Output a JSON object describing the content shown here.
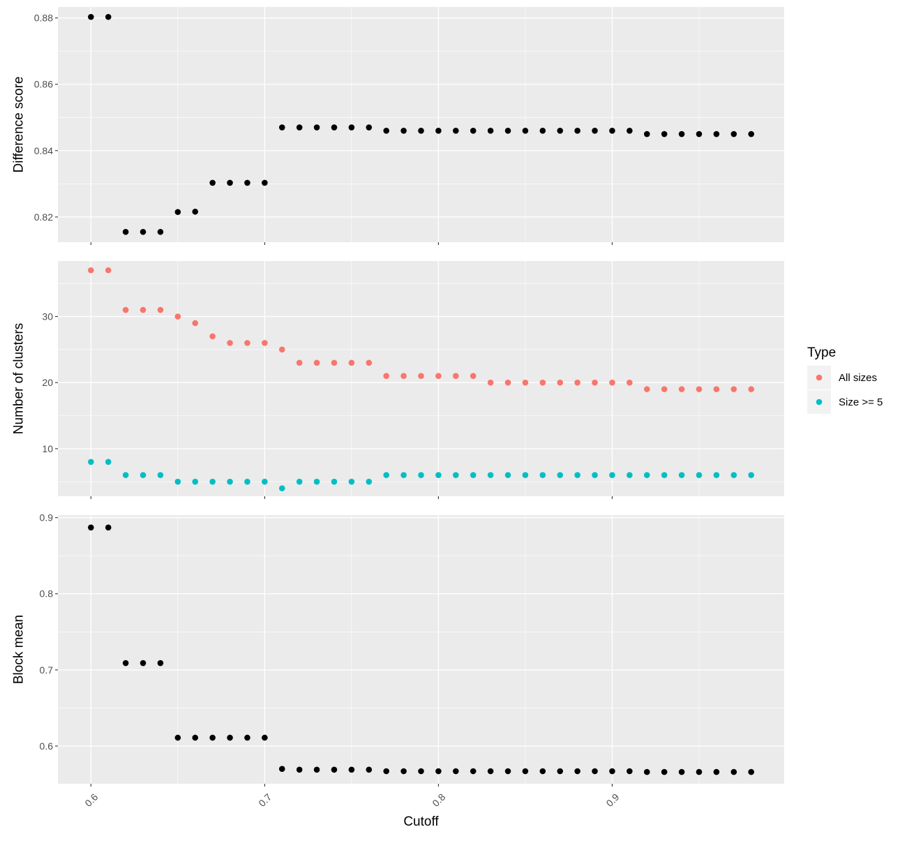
{
  "chart_data": {
    "type": "scatter",
    "xlabel": "Cutoff",
    "x": [
      0.6,
      0.61,
      0.62,
      0.63,
      0.64,
      0.65,
      0.66,
      0.67,
      0.68,
      0.69,
      0.7,
      0.71,
      0.72,
      0.73,
      0.74,
      0.75,
      0.76,
      0.77,
      0.78,
      0.79,
      0.8,
      0.81,
      0.82,
      0.83,
      0.84,
      0.85,
      0.86,
      0.87,
      0.88,
      0.89,
      0.9,
      0.91,
      0.92,
      0.93,
      0.94,
      0.95,
      0.96,
      0.97,
      0.98
    ],
    "xlim": [
      0.581,
      0.999
    ],
    "xticks": [
      0.6,
      0.7,
      0.8,
      0.9
    ],
    "xtick_labels": [
      "0.6",
      "0.7",
      "0.8",
      "0.9"
    ],
    "grid": true,
    "panels": [
      {
        "ylabel": "Difference score",
        "ylim": [
          0.8124,
          0.8833
        ],
        "yticks": [
          0.82,
          0.84,
          0.86,
          0.88
        ],
        "ytick_labels": [
          "0.82",
          "0.84",
          "0.86",
          "0.88"
        ],
        "series": [
          {
            "color": "#000000",
            "values": [
              0.8803,
              0.8803,
              0.8155,
              0.8155,
              0.8155,
              0.8215,
              0.8216,
              0.8303,
              0.8303,
              0.8303,
              0.8303,
              0.847,
              0.847,
              0.847,
              0.847,
              0.847,
              0.847,
              0.846,
              0.846,
              0.846,
              0.846,
              0.846,
              0.846,
              0.846,
              0.846,
              0.846,
              0.846,
              0.846,
              0.846,
              0.846,
              0.846,
              0.846,
              0.845,
              0.845,
              0.845,
              0.845,
              0.845,
              0.845,
              0.845
            ]
          }
        ]
      },
      {
        "ylabel": "Number of clusters",
        "ylim": [
          2.8,
          38.4
        ],
        "yticks": [
          10,
          20,
          30
        ],
        "ytick_labels": [
          "10",
          "20",
          "30"
        ],
        "series": [
          {
            "name": "All sizes",
            "color": "#F8766D",
            "values": [
              37,
              37,
              31,
              31,
              31,
              30,
              29,
              27,
              26,
              26,
              26,
              25,
              23,
              23,
              23,
              23,
              23,
              21,
              21,
              21,
              21,
              21,
              21,
              20,
              20,
              20,
              20,
              20,
              20,
              20,
              20,
              20,
              19,
              19,
              19,
              19,
              19,
              19,
              19
            ]
          },
          {
            "name": "Size >= 5",
            "color": "#00BFC4",
            "values": [
              8,
              8,
              6,
              6,
              6,
              5,
              5,
              5,
              5,
              5,
              5,
              4,
              5,
              5,
              5,
              5,
              5,
              6,
              6,
              6,
              6,
              6,
              6,
              6,
              6,
              6,
              6,
              6,
              6,
              6,
              6,
              6,
              6,
              6,
              6,
              6,
              6,
              6,
              6
            ]
          }
        ]
      },
      {
        "ylabel": "Block mean",
        "ylim": [
          0.5505,
          0.9033
        ],
        "yticks": [
          0.6,
          0.7,
          0.8,
          0.9
        ],
        "ytick_labels": [
          "0.6",
          "0.7",
          "0.8",
          "0.9"
        ],
        "series": [
          {
            "color": "#000000",
            "values": [
              0.887,
              0.887,
              0.709,
              0.709,
              0.709,
              0.611,
              0.611,
              0.611,
              0.611,
              0.611,
              0.611,
              0.57,
              0.569,
              0.569,
              0.569,
              0.569,
              0.569,
              0.567,
              0.567,
              0.567,
              0.567,
              0.567,
              0.567,
              0.567,
              0.567,
              0.567,
              0.567,
              0.567,
              0.567,
              0.567,
              0.567,
              0.567,
              0.566,
              0.566,
              0.566,
              0.566,
              0.566,
              0.566,
              0.566
            ]
          }
        ]
      }
    ],
    "legend": {
      "title": "Type",
      "position": "right",
      "entries": [
        {
          "label": "All sizes",
          "color": "#F8766D"
        },
        {
          "label": "Size >= 5",
          "color": "#00BFC4"
        }
      ]
    }
  }
}
